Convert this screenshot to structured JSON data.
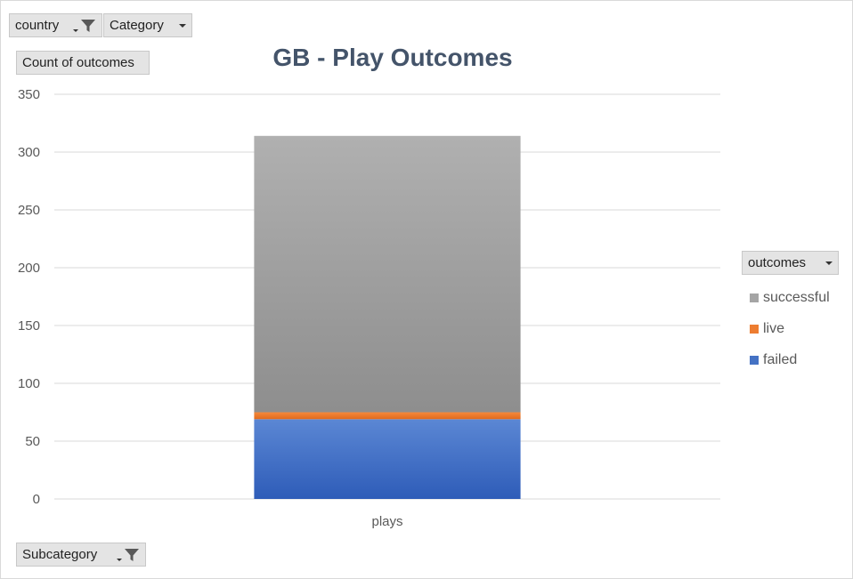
{
  "filters": {
    "country_label": "country",
    "category_label": "Category",
    "subcategory_label": "Subcategory"
  },
  "value_field_label": "Count of outcomes",
  "legend_field_label": "outcomes",
  "colors": {
    "successful": "#a5a5a5",
    "live": "#ed7d31",
    "failed": "#4472c4",
    "title": "#44546a",
    "grid": "#d9d9d9"
  },
  "chart_data": {
    "type": "bar",
    "stacked": true,
    "title": "GB - Play Outcomes",
    "categories": [
      "plays"
    ],
    "series": [
      {
        "name": "failed",
        "values": [
          69
        ]
      },
      {
        "name": "live",
        "values": [
          6
        ]
      },
      {
        "name": "successful",
        "values": [
          239
        ]
      }
    ],
    "ylim": [
      0,
      350
    ],
    "yticks": [
      0,
      50,
      100,
      150,
      200,
      250,
      300,
      350
    ],
    "grid": true,
    "legend_position": "right",
    "legend_order": [
      "successful",
      "live",
      "failed"
    ]
  }
}
